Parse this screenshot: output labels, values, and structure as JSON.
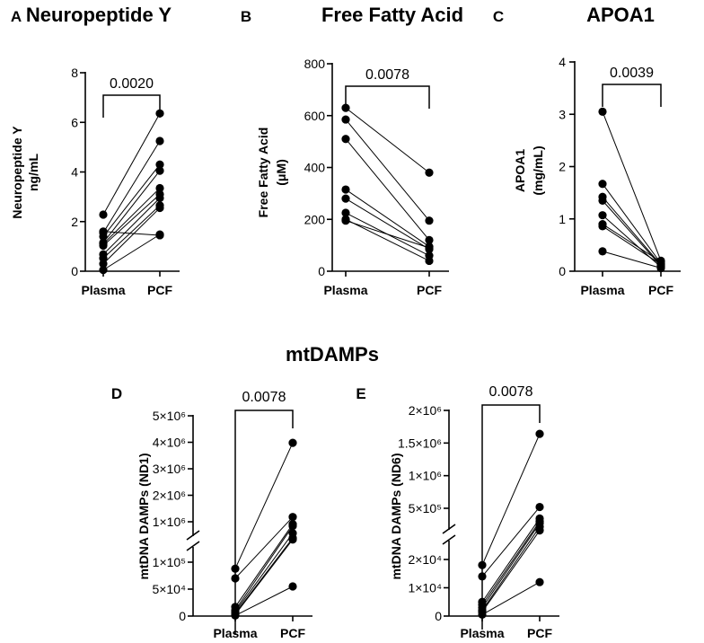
{
  "section_title": "mtDAMPs",
  "chart_data": [
    {
      "panel": "A",
      "type": "scatter",
      "title": "Neuropeptide Y",
      "ylabel": [
        "Neuropeptide Y",
        "ng/mL"
      ],
      "categories": [
        "Plasma",
        "PCF"
      ],
      "ylim": [
        0,
        8
      ],
      "yticks": [
        0,
        2,
        4,
        6,
        8
      ],
      "p_value": "0.0020",
      "pairs": [
        [
          2.28,
          6.36
        ],
        [
          1.55,
          5.25
        ],
        [
          1.4,
          4.3
        ],
        [
          1.15,
          4.05
        ],
        [
          1.1,
          3.35
        ],
        [
          1.03,
          3.1
        ],
        [
          0.68,
          2.95
        ],
        [
          0.52,
          2.65
        ],
        [
          0.3,
          2.55
        ],
        [
          0.05,
          1.48
        ],
        [
          1.6,
          1.45
        ]
      ]
    },
    {
      "panel": "B",
      "type": "scatter",
      "title": "Free Fatty Acid",
      "ylabel": [
        "Free Fatty Acid",
        "(μM)"
      ],
      "categories": [
        "Plasma",
        "PCF"
      ],
      "ylim": [
        0,
        800
      ],
      "yticks": [
        0,
        200,
        400,
        600,
        800
      ],
      "p_value": "0.0078",
      "pairs": [
        [
          630,
          380
        ],
        [
          585,
          195
        ],
        [
          510,
          120
        ],
        [
          315,
          95
        ],
        [
          280,
          85
        ],
        [
          225,
          60
        ],
        [
          200,
          40
        ],
        [
          195,
          90
        ]
      ]
    },
    {
      "panel": "C",
      "type": "scatter",
      "title": "APOA1",
      "ylabel": [
        "APOA1",
        "(mg/mL)"
      ],
      "categories": [
        "Plasma",
        "PCF"
      ],
      "ylim": [
        0,
        4
      ],
      "yticks": [
        0,
        1,
        2,
        3,
        4
      ],
      "p_value": "0.0039",
      "pairs": [
        [
          3.05,
          0.2
        ],
        [
          1.67,
          0.15
        ],
        [
          1.42,
          0.12
        ],
        [
          1.35,
          0.1
        ],
        [
          1.07,
          0.08
        ],
        [
          0.9,
          0.18
        ],
        [
          0.86,
          0.13
        ],
        [
          0.38,
          0.06
        ]
      ]
    },
    {
      "panel": "D",
      "type": "scatter",
      "ylabel": [
        "mtDNA DAMPs (ND1)"
      ],
      "categories": [
        "Plasma",
        "PCF"
      ],
      "yscale": "broken",
      "lower_range": [
        0,
        100000
      ],
      "upper_range": [
        0,
        5000000
      ],
      "ytick_labels": [
        "0",
        "5×10⁴",
        "1×10⁵",
        "1×10⁶",
        "2×10⁶",
        "3×10⁶",
        "4×10⁶",
        "5×10⁶"
      ],
      "p_value": "0.0078",
      "pairs": [
        [
          88000,
          3980000
        ],
        [
          70000,
          1180000
        ],
        [
          17000,
          900000
        ],
        [
          11000,
          820000
        ],
        [
          8000,
          520000
        ],
        [
          5000,
          320000
        ],
        [
          3000,
          260000
        ],
        [
          1000,
          55000
        ]
      ]
    },
    {
      "panel": "E",
      "type": "scatter",
      "ylabel": [
        "mtDNA DAMPs (ND6)"
      ],
      "categories": [
        "Plasma",
        "PCF"
      ],
      "yscale": "broken",
      "lower_range": [
        0,
        20000
      ],
      "upper_range": [
        0,
        2000000
      ],
      "ytick_labels": [
        "0",
        "1×10⁴",
        "2×10⁴",
        "5×10⁵",
        "1×10⁶",
        "1.5×10⁶",
        "2×10⁶"
      ],
      "p_value": "0.0078",
      "pairs": [
        [
          18000,
          1640000
        ],
        [
          14000,
          520000
        ],
        [
          5000,
          330000
        ],
        [
          4000,
          280000
        ],
        [
          3000,
          250000
        ],
        [
          2000,
          190000
        ],
        [
          1500,
          130000
        ],
        [
          500,
          12000
        ]
      ]
    }
  ]
}
